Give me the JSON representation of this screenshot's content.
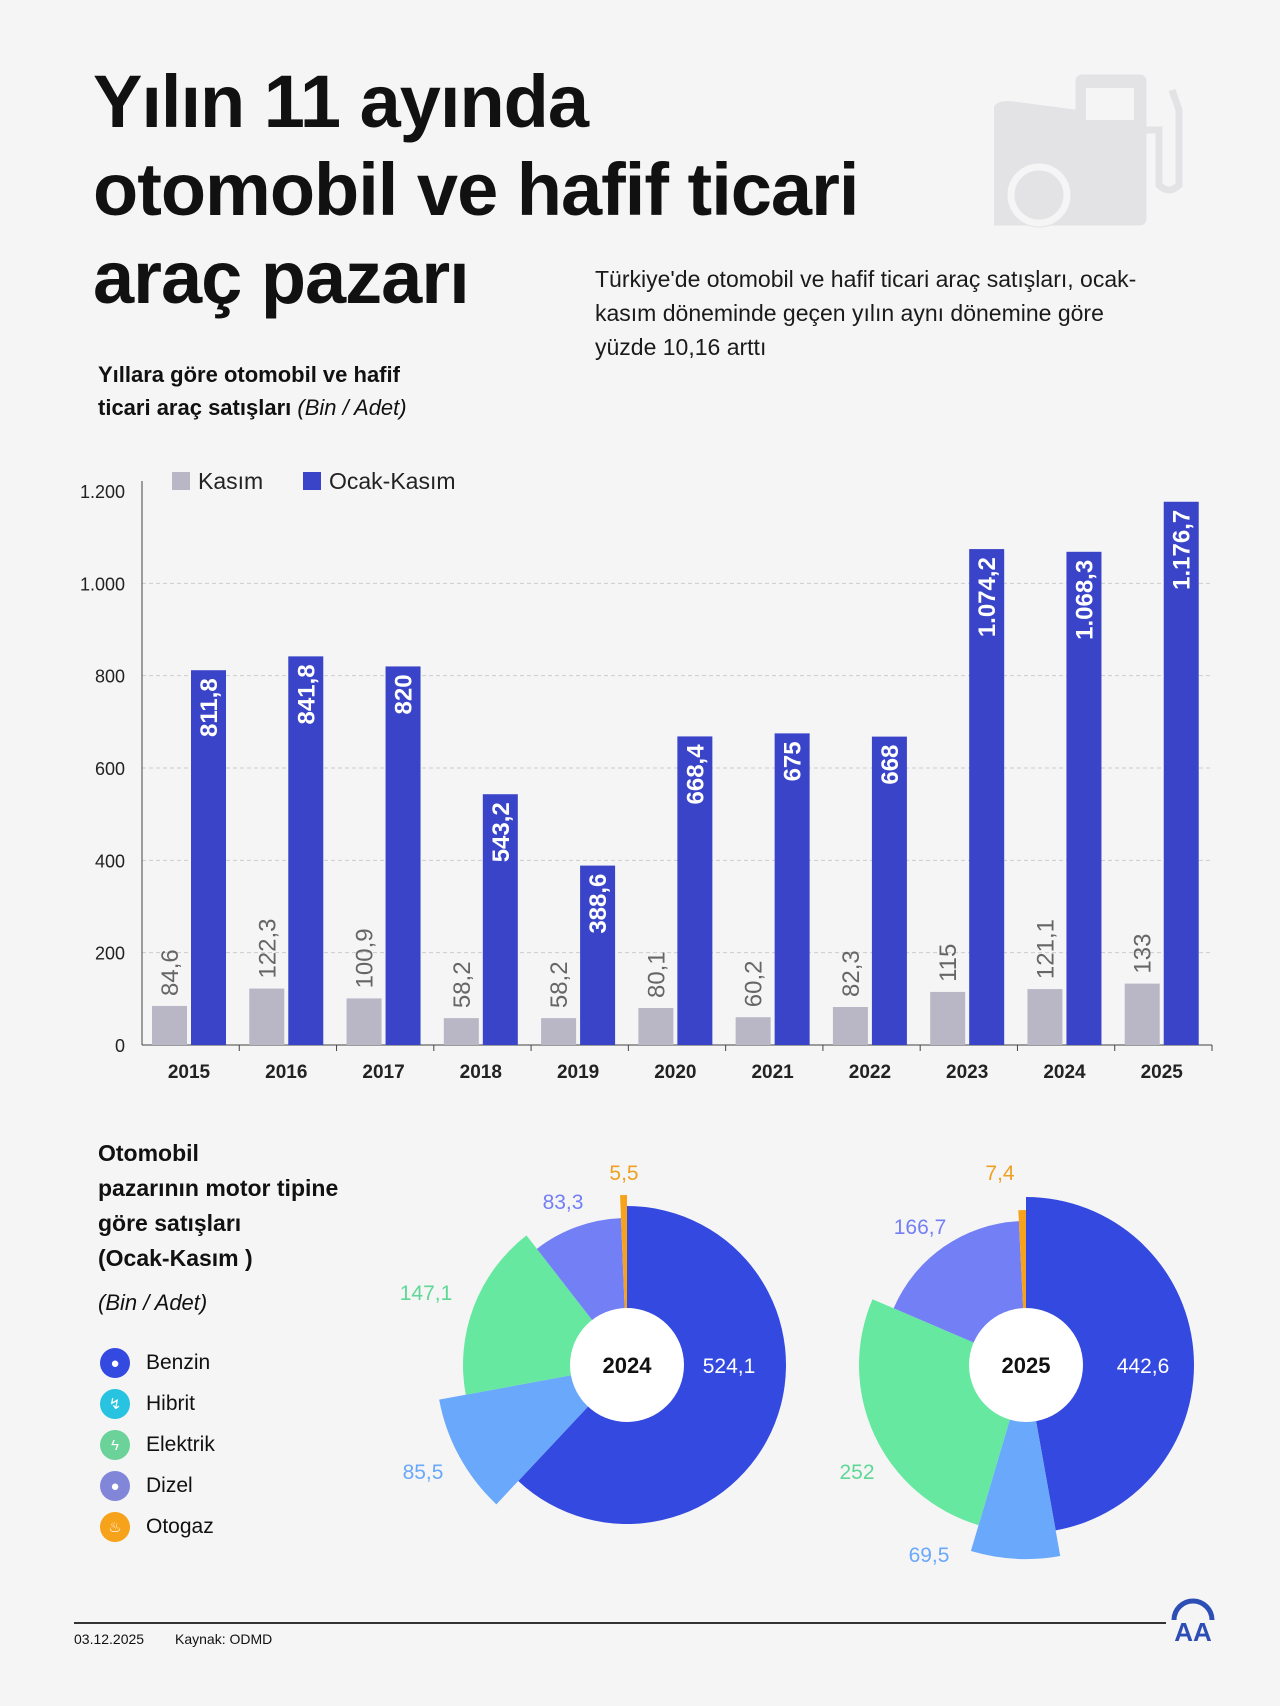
{
  "title": "Yılın 11 ayında otomobil ve hafif ticari araç pazarı",
  "subtitle": "Türkiye'de otomobil ve hafif ticari araç satışları, ocak-kasım döneminde geçen yılın aynı dönemine göre yüzde 10,16 arttı",
  "chart_data": [
    {
      "type": "bar",
      "title": "Yıllara göre otomobil ve hafif ticari araç satışları",
      "unit": "(Bin / Adet)",
      "categories": [
        "2015",
        "2016",
        "2017",
        "2018",
        "2019",
        "2020",
        "2021",
        "2022",
        "2023",
        "2024",
        "2025"
      ],
      "series": [
        {
          "name": "Kasım",
          "color": "#b9b7c5",
          "values": [
            84.6,
            122.3,
            100.9,
            58.2,
            58.2,
            80.1,
            60.2,
            82.3,
            115,
            121.1,
            133
          ],
          "labels": [
            "84,6",
            "122,3",
            "100,9",
            "58,2",
            "58,2",
            "80,1",
            "60,2",
            "82,3",
            "115",
            "121,1",
            "133"
          ]
        },
        {
          "name": "Ocak-Kasım",
          "color": "#3a44c8",
          "values": [
            811.8,
            841.8,
            820,
            543.2,
            388.6,
            668.4,
            675,
            668,
            1074.2,
            1068.3,
            1176.7
          ],
          "labels": [
            "811,8",
            "841,8",
            "820",
            "543,2",
            "388,6",
            "668,4",
            "675",
            "668",
            "1.074,2",
            "1.068,3",
            "1.176,7"
          ]
        }
      ],
      "ylim": [
        0,
        1200
      ],
      "yticks": [
        0,
        200,
        400,
        600,
        800,
        1000,
        1200
      ],
      "ytick_labels": [
        "0",
        "200",
        "400",
        "600",
        "800",
        "1.000",
        "1.200"
      ],
      "grid": true,
      "legend": "top-left"
    },
    {
      "type": "pie",
      "title": "Otomobil pazarının motor tipine göre satışları (Ocak-Kasım )",
      "unit": "(Bin / Adet)",
      "categories": [
        "Benzin",
        "Hibrit",
        "Elektrik",
        "Dizel",
        "Otogaz"
      ],
      "colors": [
        "#3449e0",
        "#6aa8fb",
        "#66e8a0",
        "#737ff5",
        "#f7a21b"
      ],
      "series": [
        {
          "name": "2024",
          "values": [
            524.1,
            85.5,
            147.1,
            83.3,
            5.5
          ],
          "labels": [
            "524,1",
            "85,5",
            "147,1",
            "83,3",
            "5,5"
          ]
        },
        {
          "name": "2025",
          "values": [
            442.6,
            69.5,
            252,
            166.7,
            7.4
          ],
          "labels": [
            "442,6",
            "69,5",
            "252",
            "166,7",
            "7,4"
          ]
        }
      ]
    }
  ],
  "legend_icons": [
    "drop-icon",
    "hybrid-bolt-icon",
    "bolt-icon",
    "drop-icon",
    "flame-icon"
  ],
  "footer": {
    "date": "03.12.2025",
    "source": "Kaynak: ODMD",
    "logo": "AA"
  }
}
